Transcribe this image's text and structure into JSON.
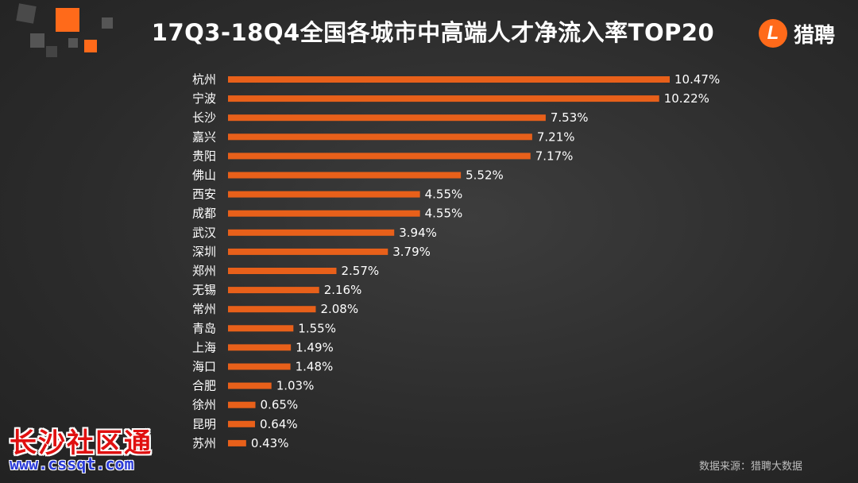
{
  "header": {
    "title": "17Q3-18Q4全国各城市中高端人才净流入率TOP20",
    "logo_mark": "L",
    "logo_text": "猎聘"
  },
  "footer": {
    "source": "数据来源：猎聘大数据"
  },
  "watermark": {
    "text": "长沙社区通",
    "url": "www.cssqt.com"
  },
  "colors": {
    "bar": "#e8601a",
    "accent": "#ff6a1a"
  },
  "chart_data": {
    "type": "bar",
    "orientation": "horizontal",
    "title": "17Q3-18Q4全国各城市中高端人才净流入率TOP20",
    "categories": [
      "杭州",
      "宁波",
      "长沙",
      "嘉兴",
      "贵阳",
      "佛山",
      "西安",
      "成都",
      "武汉",
      "深圳",
      "郑州",
      "无锡",
      "常州",
      "青岛",
      "上海",
      "海口",
      "合肥",
      "徐州",
      "昆明",
      "苏州"
    ],
    "values": [
      10.47,
      10.22,
      7.53,
      7.21,
      7.17,
      5.52,
      4.55,
      4.55,
      3.94,
      3.79,
      2.57,
      2.16,
      2.08,
      1.55,
      1.49,
      1.48,
      1.03,
      0.65,
      0.64,
      0.43
    ],
    "value_labels": [
      "10.47%",
      "10.22%",
      "7.53%",
      "7.21%",
      "7.17%",
      "5.52%",
      "4.55%",
      "4.55%",
      "3.94%",
      "3.79%",
      "2.57%",
      "2.16%",
      "2.08%",
      "1.55%",
      "1.49%",
      "1.48%",
      "1.03%",
      "0.65%",
      "0.64%",
      "0.43%"
    ],
    "unit": "%",
    "xlim": [
      0,
      10.47
    ],
    "grid": false,
    "legend": "none"
  }
}
